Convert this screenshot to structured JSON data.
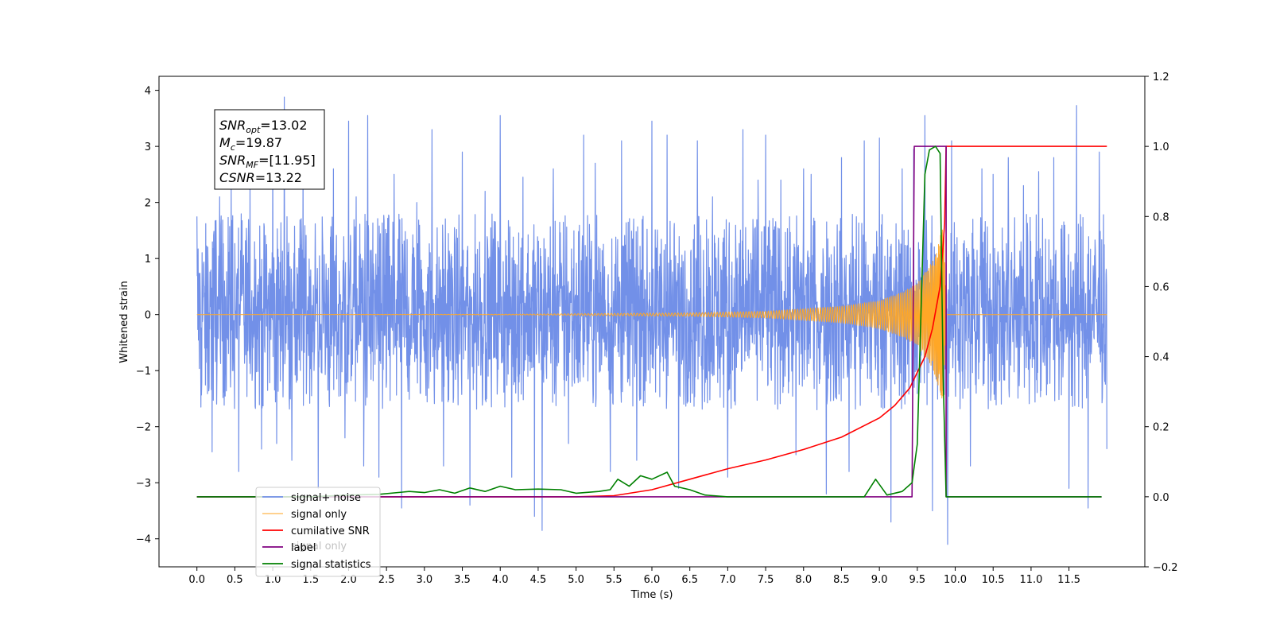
{
  "chart_data": {
    "type": "line",
    "xlabel": "Time (s)",
    "ylabel": "Whitened strain",
    "xlim": [
      -0.5,
      12.5
    ],
    "ylim": [
      -4.5,
      4.25
    ],
    "y2lim": [
      -0.2,
      1.2
    ],
    "x_ticks": [
      "0.0",
      "0.5",
      "1.0",
      "1.5",
      "2.0",
      "2.5",
      "3.0",
      "3.5",
      "4.0",
      "4.5",
      "5.0",
      "5.5",
      "6.0",
      "6.5",
      "7.0",
      "7.5",
      "8.0",
      "8.5",
      "9.0",
      "9.5",
      "10.0",
      "10.5",
      "11.0",
      "11.5"
    ],
    "y_ticks": [
      "4",
      "3",
      "2",
      "1",
      "0",
      "−1",
      "−2",
      "−3",
      "−4"
    ],
    "y2_ticks": [
      "1.2",
      "1.0",
      "0.8",
      "0.6",
      "0.4",
      "0.2",
      "0.0",
      "−0.2"
    ],
    "grid": false,
    "legend_position": "lower-left",
    "annotation": {
      "lines": [
        {
          "main": "SNR",
          "sub": "opt",
          "value": "=13.02"
        },
        {
          "main": "M",
          "sub": "c",
          "value": "=19.87"
        },
        {
          "main": "SNR",
          "sub": "MF",
          "value": "=[11.95]"
        },
        {
          "main": "CSNR",
          "sub": "",
          "value": "=13.22"
        }
      ]
    },
    "series": [
      {
        "name": "signal+ noise",
        "color": "#7290e8",
        "axis": "left",
        "kind": "noise",
        "x_range": [
          0.0,
          12.0
        ],
        "typical_range": [
          -1.7,
          1.8
        ],
        "spikes": [
          [
            0.0,
            1.75
          ],
          [
            0.05,
            -1.65
          ],
          [
            0.2,
            -2.45
          ],
          [
            0.3,
            2.1
          ],
          [
            0.45,
            2.3
          ],
          [
            0.55,
            -2.8
          ],
          [
            0.7,
            2.5
          ],
          [
            0.85,
            -2.4
          ],
          [
            1.0,
            3.0
          ],
          [
            1.05,
            -2.3
          ],
          [
            1.15,
            3.88
          ],
          [
            1.25,
            -2.6
          ],
          [
            1.4,
            2.8
          ],
          [
            1.6,
            -3.1
          ],
          [
            1.8,
            2.6
          ],
          [
            1.95,
            -2.2
          ],
          [
            2.0,
            3.45
          ],
          [
            2.1,
            2.1
          ],
          [
            2.2,
            -2.7
          ],
          [
            2.25,
            3.55
          ],
          [
            2.4,
            -2.9
          ],
          [
            2.6,
            2.5
          ],
          [
            2.7,
            -3.45
          ],
          [
            2.9,
            2.0
          ],
          [
            3.1,
            3.3
          ],
          [
            3.25,
            -2.7
          ],
          [
            3.5,
            2.9
          ],
          [
            3.6,
            -3.4
          ],
          [
            3.8,
            2.2
          ],
          [
            4.0,
            3.55
          ],
          [
            4.15,
            -2.9
          ],
          [
            4.3,
            2.45
          ],
          [
            4.45,
            -3.6
          ],
          [
            4.55,
            -3.85
          ],
          [
            4.7,
            2.6
          ],
          [
            4.9,
            -2.3
          ],
          [
            5.1,
            3.2
          ],
          [
            5.25,
            2.7
          ],
          [
            5.45,
            -2.8
          ],
          [
            5.6,
            3.1
          ],
          [
            5.8,
            -2.6
          ],
          [
            6.0,
            3.45
          ],
          [
            6.2,
            3.2
          ],
          [
            6.35,
            -3.1
          ],
          [
            6.6,
            3.1
          ],
          [
            6.8,
            2.1
          ],
          [
            7.0,
            -2.9
          ],
          [
            7.2,
            3.3
          ],
          [
            7.4,
            2.4
          ],
          [
            7.5,
            3.2
          ],
          [
            7.7,
            2.4
          ],
          [
            7.9,
            -2.5
          ],
          [
            8.0,
            2.6
          ],
          [
            8.1,
            2.5
          ],
          [
            8.3,
            -3.2
          ],
          [
            8.5,
            2.8
          ],
          [
            8.6,
            -2.8
          ],
          [
            8.8,
            3.1
          ],
          [
            9.0,
            3.15
          ],
          [
            9.15,
            -3.7
          ],
          [
            9.3,
            2.6
          ],
          [
            9.45,
            2.95
          ],
          [
            9.6,
            3.55
          ],
          [
            9.7,
            -3.5
          ],
          [
            9.9,
            -4.1
          ],
          [
            9.95,
            3.1
          ],
          [
            10.2,
            -2.7
          ],
          [
            10.35,
            2.6
          ],
          [
            10.5,
            2.5
          ],
          [
            10.7,
            2.8
          ],
          [
            10.9,
            2.3
          ],
          [
            11.1,
            2.55
          ],
          [
            11.3,
            2.8
          ],
          [
            11.5,
            -3.1
          ],
          [
            11.6,
            3.73
          ],
          [
            11.75,
            -3.45
          ],
          [
            11.9,
            2.9
          ],
          [
            12.0,
            -2.4
          ]
        ]
      },
      {
        "name": "signal only",
        "color": "#ffa726",
        "axis": "left",
        "kind": "chirp",
        "x_range": [
          0.0,
          12.0
        ],
        "envelope": [
          [
            0.0,
            0.0
          ],
          [
            4.0,
            0.005
          ],
          [
            6.5,
            0.03
          ],
          [
            7.5,
            0.06
          ],
          [
            8.5,
            0.15
          ],
          [
            9.0,
            0.25
          ],
          [
            9.3,
            0.4
          ],
          [
            9.5,
            0.55
          ],
          [
            9.7,
            0.95
          ],
          [
            9.85,
            1.6
          ],
          [
            9.88,
            0.0
          ],
          [
            12.0,
            0.0
          ]
        ]
      },
      {
        "name": "cumilative SNR",
        "color": "#ff0000",
        "axis": "right",
        "points": [
          [
            0.0,
            0.0
          ],
          [
            5.0,
            0.0
          ],
          [
            5.5,
            0.003
          ],
          [
            6.0,
            0.02
          ],
          [
            6.5,
            0.05
          ],
          [
            7.0,
            0.08
          ],
          [
            7.5,
            0.105
          ],
          [
            8.0,
            0.135
          ],
          [
            8.5,
            0.17
          ],
          [
            9.0,
            0.225
          ],
          [
            9.2,
            0.26
          ],
          [
            9.4,
            0.31
          ],
          [
            9.5,
            0.355
          ],
          [
            9.6,
            0.4
          ],
          [
            9.7,
            0.48
          ],
          [
            9.8,
            0.6
          ],
          [
            9.86,
            0.78
          ],
          [
            9.88,
            1.0
          ],
          [
            12.0,
            1.0
          ]
        ]
      },
      {
        "name": "label",
        "color": "#800080",
        "axis": "right",
        "points": [
          [
            0.0,
            0.0
          ],
          [
            9.43,
            0.0
          ],
          [
            9.46,
            1.0
          ],
          [
            9.88,
            1.0
          ],
          [
            9.88,
            0.0
          ],
          [
            11.93,
            0.0
          ]
        ]
      },
      {
        "name": "signal statistics",
        "color": "#008000",
        "axis": "right",
        "points": [
          [
            0.0,
            0.0
          ],
          [
            1.5,
            0.0
          ],
          [
            2.0,
            0.005
          ],
          [
            2.4,
            0.007
          ],
          [
            2.8,
            0.015
          ],
          [
            3.0,
            0.012
          ],
          [
            3.2,
            0.02
          ],
          [
            3.4,
            0.01
          ],
          [
            3.6,
            0.025
          ],
          [
            3.8,
            0.015
          ],
          [
            4.0,
            0.03
          ],
          [
            4.2,
            0.02
          ],
          [
            4.5,
            0.022
          ],
          [
            4.8,
            0.02
          ],
          [
            5.0,
            0.01
          ],
          [
            5.3,
            0.015
          ],
          [
            5.45,
            0.02
          ],
          [
            5.55,
            0.05
          ],
          [
            5.7,
            0.03
          ],
          [
            5.85,
            0.06
          ],
          [
            6.0,
            0.05
          ],
          [
            6.2,
            0.07
          ],
          [
            6.3,
            0.03
          ],
          [
            6.5,
            0.02
          ],
          [
            6.7,
            0.005
          ],
          [
            7.0,
            0.0
          ],
          [
            8.8,
            0.0
          ],
          [
            8.95,
            0.05
          ],
          [
            9.1,
            0.005
          ],
          [
            9.3,
            0.015
          ],
          [
            9.43,
            0.04
          ],
          [
            9.5,
            0.15
          ],
          [
            9.6,
            0.92
          ],
          [
            9.66,
            0.99
          ],
          [
            9.74,
            1.0
          ],
          [
            9.8,
            0.98
          ],
          [
            9.84,
            0.35
          ],
          [
            9.88,
            0.0
          ],
          [
            11.93,
            0.0
          ]
        ]
      }
    ],
    "legend": [
      "signal+ noise",
      "signal only",
      "cumilative SNR",
      "label",
      "signal statistics"
    ],
    "legend_ghost_text": "signal only"
  }
}
